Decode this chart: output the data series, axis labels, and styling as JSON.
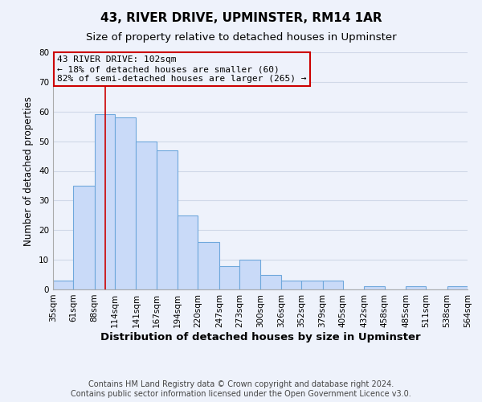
{
  "title": "43, RIVER DRIVE, UPMINSTER, RM14 1AR",
  "subtitle": "Size of property relative to detached houses in Upminster",
  "xlabel": "Distribution of detached houses by size in Upminster",
  "ylabel": "Number of detached properties",
  "bar_left_edges": [
    35,
    61,
    88,
    114,
    141,
    167,
    194,
    220,
    247,
    273,
    300,
    326,
    352,
    379,
    405,
    432,
    458,
    485,
    511,
    538
  ],
  "bar_widths": [
    26,
    27,
    26,
    27,
    26,
    27,
    26,
    27,
    26,
    27,
    26,
    26,
    27,
    26,
    27,
    26,
    27,
    26,
    27,
    26
  ],
  "bar_heights": [
    3,
    35,
    59,
    58,
    50,
    47,
    25,
    16,
    8,
    10,
    5,
    3,
    3,
    3,
    0,
    1,
    0,
    1,
    0,
    1
  ],
  "bar_color": "#c9daf8",
  "bar_edgecolor": "#6fa8dc",
  "xlim_left": 35,
  "xlim_right": 564,
  "ylim": [
    0,
    80
  ],
  "yticks": [
    0,
    10,
    20,
    30,
    40,
    50,
    60,
    70,
    80
  ],
  "xtick_labels": [
    "35sqm",
    "61sqm",
    "88sqm",
    "114sqm",
    "141sqm",
    "167sqm",
    "194sqm",
    "220sqm",
    "247sqm",
    "273sqm",
    "300sqm",
    "326sqm",
    "352sqm",
    "379sqm",
    "405sqm",
    "432sqm",
    "458sqm",
    "485sqm",
    "511sqm",
    "538sqm",
    "564sqm"
  ],
  "xtick_positions": [
    35,
    61,
    88,
    114,
    141,
    167,
    194,
    220,
    247,
    273,
    300,
    326,
    352,
    379,
    405,
    432,
    458,
    485,
    511,
    538,
    564
  ],
  "vline_x": 102,
  "vline_color": "#cc0000",
  "annotation_line1": "43 RIVER DRIVE: 102sqm",
  "annotation_line2": "← 18% of detached houses are smaller (60)",
  "annotation_line3": "82% of semi-detached houses are larger (265) →",
  "annotation_fontsize": 8,
  "grid_color": "#d0d8e8",
  "background_color": "#eef2fb",
  "footer_text": "Contains HM Land Registry data © Crown copyright and database right 2024.\nContains public sector information licensed under the Open Government Licence v3.0.",
  "title_fontsize": 11,
  "subtitle_fontsize": 9.5,
  "xlabel_fontsize": 9.5,
  "ylabel_fontsize": 8.5,
  "footer_fontsize": 7,
  "tick_fontsize": 7.5
}
